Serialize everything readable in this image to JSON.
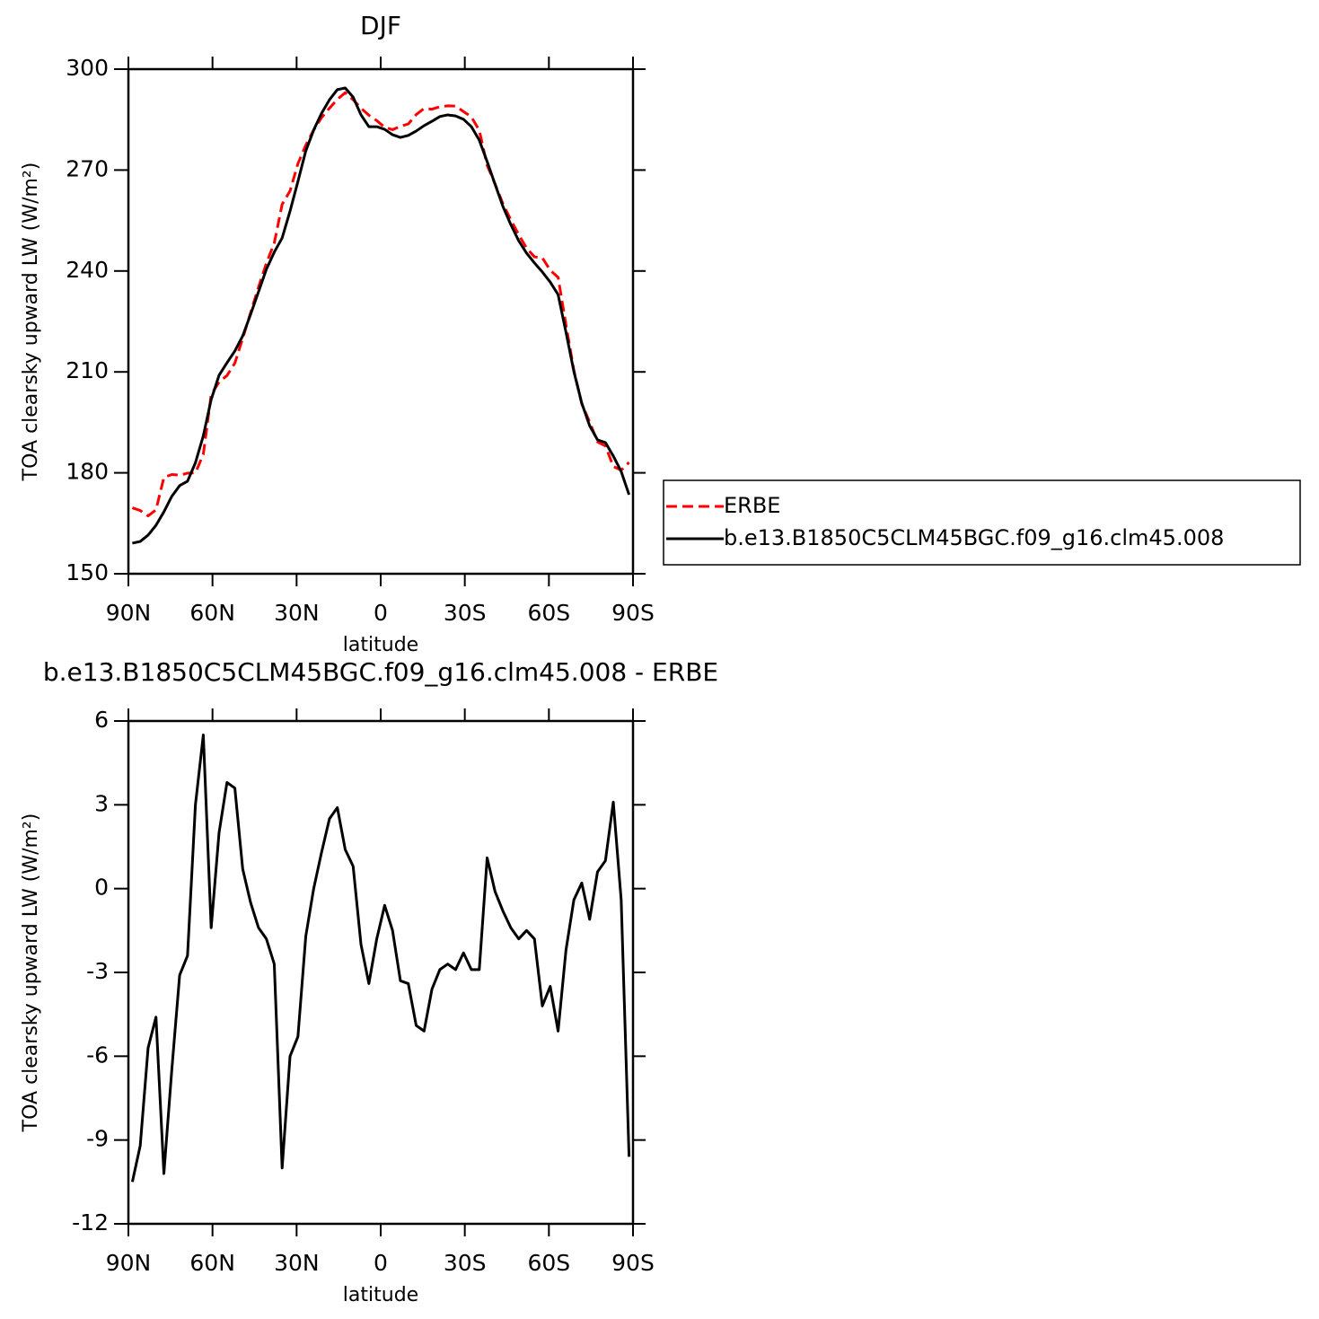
{
  "chart_data": [
    {
      "type": "line",
      "title": "DJF",
      "x_label": "latitude",
      "y_label": "TOA clearsky upward LW (W/m²)",
      "x": [
        88.59,
        85.78,
        82.97,
        80.16,
        77.34,
        74.53,
        71.72,
        68.91,
        66.09,
        63.28,
        60.47,
        57.66,
        54.84,
        52.03,
        49.22,
        46.41,
        43.59,
        40.78,
        37.97,
        35.16,
        32.34,
        29.53,
        26.72,
        23.91,
        21.09,
        18.28,
        15.47,
        12.66,
        9.84,
        7.03,
        4.22,
        1.41,
        -1.41,
        -4.22,
        -7.03,
        -9.84,
        -12.66,
        -15.47,
        -18.28,
        -21.09,
        -23.91,
        -26.72,
        -29.53,
        -32.34,
        -35.16,
        -37.97,
        -40.78,
        -43.59,
        -46.41,
        -49.22,
        -52.03,
        -54.84,
        -57.66,
        -60.47,
        -63.28,
        -66.09,
        -68.91,
        -71.72,
        -74.53,
        -77.34,
        -80.16,
        -82.97,
        -85.78,
        -88.59
      ],
      "xlim": [
        90,
        -90
      ],
      "xticks": [
        {
          "value": 90,
          "label": "90N"
        },
        {
          "value": 60,
          "label": "60N"
        },
        {
          "value": 30,
          "label": "30N"
        },
        0,
        {
          "value": -30,
          "label": "30S"
        },
        {
          "value": -60,
          "label": "60S"
        },
        {
          "value": -90,
          "label": "90S"
        }
      ],
      "ylim": [
        150,
        300
      ],
      "yticks": [
        150,
        180,
        210,
        240,
        270,
        300
      ],
      "legend": "right",
      "series": [
        {
          "name": "ERBE",
          "color": "#ff0000",
          "dashed": true,
          "values": [
            169.6,
            168.8,
            167.2,
            169.0,
            178.6,
            179.5,
            179.3,
            179.9,
            180.0,
            185.5,
            203.2,
            207.0,
            208.9,
            212.6,
            220.0,
            227.6,
            235.2,
            242.3,
            248.3,
            259.8,
            263.8,
            271.9,
            277.4,
            281.9,
            285.6,
            288.4,
            291.0,
            293.0,
            290.9,
            288.4,
            286.3,
            284.7,
            282.7,
            282.0,
            283.0,
            283.7,
            286.5,
            288.3,
            288.1,
            288.8,
            289.1,
            289.0,
            287.4,
            285.8,
            281.8,
            271.4,
            265.9,
            260.0,
            255.2,
            250.8,
            246.8,
            244.2,
            243.9,
            240.2,
            238.1,
            224.0,
            210.5,
            200.5,
            195.1,
            189.2,
            188.0,
            181.9,
            180.8,
            183.1
          ]
        },
        {
          "name": "b.e13.B1850C5CLM45BGC.f09_g16.clm45.008",
          "color": "#000000",
          "dashed": false,
          "values": [
            159.1,
            159.6,
            161.5,
            164.4,
            168.4,
            173.0,
            176.2,
            177.5,
            183.0,
            191.0,
            201.8,
            209.0,
            212.7,
            216.2,
            220.7,
            227.1,
            233.8,
            240.5,
            245.6,
            249.8,
            257.8,
            266.6,
            275.7,
            281.9,
            286.9,
            290.9,
            293.9,
            294.4,
            291.7,
            286.4,
            282.9,
            282.9,
            282.1,
            280.5,
            279.7,
            280.3,
            281.6,
            283.2,
            284.5,
            285.9,
            286.4,
            286.1,
            285.1,
            282.9,
            278.9,
            272.5,
            265.8,
            259.2,
            253.8,
            249.0,
            245.3,
            242.4,
            239.7,
            236.7,
            233.0,
            221.8,
            210.1,
            200.7,
            194.0,
            189.8,
            189.0,
            185.0,
            180.4,
            173.5
          ]
        }
      ]
    },
    {
      "type": "line",
      "title": "b.e13.B1850C5CLM45BGC.f09_g16.clm45.008 - ERBE",
      "x_label": "latitude",
      "y_label": "TOA clearsky upward LW (W/m²)",
      "x": [
        88.59,
        85.78,
        82.97,
        80.16,
        77.34,
        74.53,
        71.72,
        68.91,
        66.09,
        63.28,
        60.47,
        57.66,
        54.84,
        52.03,
        49.22,
        46.41,
        43.59,
        40.78,
        37.97,
        35.16,
        32.34,
        29.53,
        26.72,
        23.91,
        21.09,
        18.28,
        15.47,
        12.66,
        9.84,
        7.03,
        4.22,
        1.41,
        -1.41,
        -4.22,
        -7.03,
        -9.84,
        -12.66,
        -15.47,
        -18.28,
        -21.09,
        -23.91,
        -26.72,
        -29.53,
        -32.34,
        -35.16,
        -37.97,
        -40.78,
        -43.59,
        -46.41,
        -49.22,
        -52.03,
        -54.84,
        -57.66,
        -60.47,
        -63.28,
        -66.09,
        -68.91,
        -71.72,
        -74.53,
        -77.34,
        -80.16,
        -82.97,
        -85.78,
        -88.59
      ],
      "xlim": [
        90,
        -90
      ],
      "xticks": [
        {
          "value": 90,
          "label": "90N"
        },
        {
          "value": 60,
          "label": "60N"
        },
        {
          "value": 30,
          "label": "30N"
        },
        0,
        {
          "value": -30,
          "label": "30S"
        },
        {
          "value": -60,
          "label": "60S"
        },
        {
          "value": -90,
          "label": "90S"
        }
      ],
      "ylim": [
        -12,
        6
      ],
      "yticks": [
        -12,
        -9,
        -6,
        -3,
        0,
        3,
        6
      ],
      "color": "#000000",
      "values": [
        -10.5,
        -9.2,
        -5.7,
        -4.6,
        -10.2,
        -6.5,
        -3.1,
        -2.4,
        3.0,
        5.5,
        -1.4,
        2.0,
        3.8,
        3.6,
        0.7,
        -0.5,
        -1.4,
        -1.8,
        -2.7,
        -10.0,
        -6.0,
        -5.3,
        -1.7,
        0.0,
        1.3,
        2.5,
        2.9,
        1.4,
        0.8,
        -2.0,
        -3.4,
        -1.8,
        -0.6,
        -1.5,
        -3.3,
        -3.4,
        -4.9,
        -5.1,
        -3.6,
        -2.9,
        -2.7,
        -2.9,
        -2.3,
        -2.9,
        -2.9,
        1.1,
        -0.1,
        -0.8,
        -1.4,
        -1.8,
        -1.5,
        -1.8,
        -4.2,
        -3.5,
        -5.1,
        -2.2,
        -0.4,
        0.2,
        -1.1,
        0.6,
        1.0,
        3.1,
        -0.4,
        -9.6
      ]
    }
  ]
}
